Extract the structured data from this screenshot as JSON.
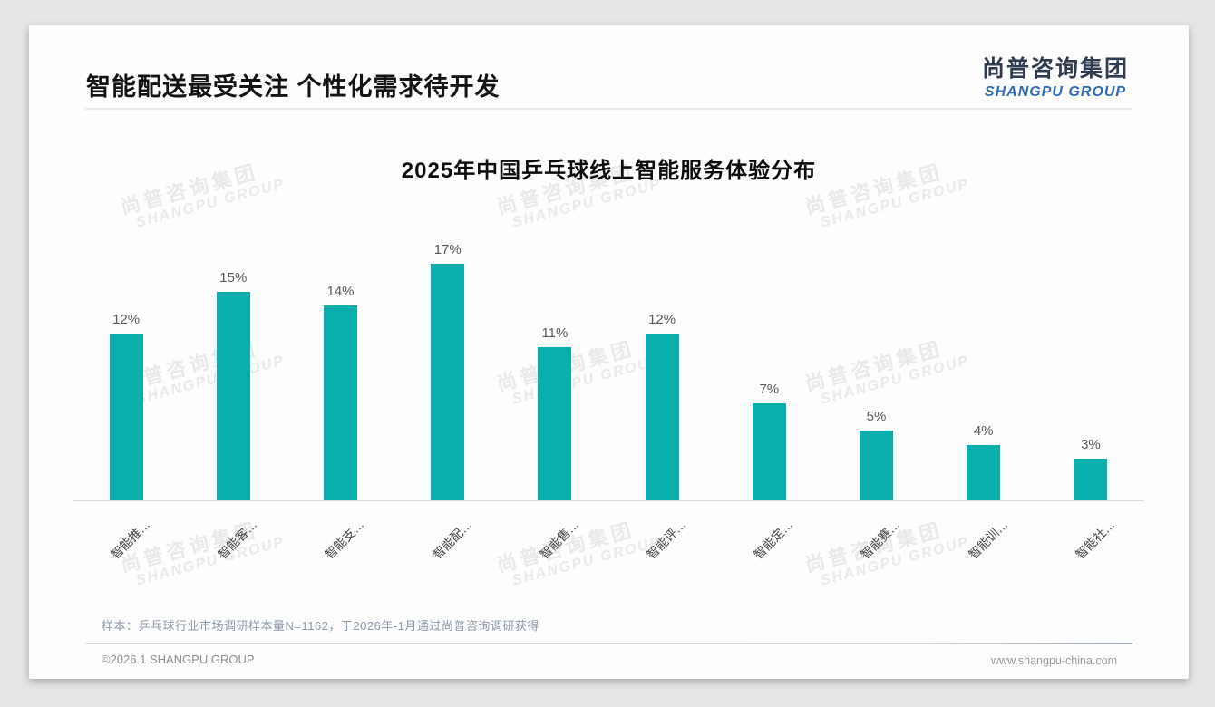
{
  "page": {
    "title": "智能配送最受关注 个性化需求待开发",
    "logo": {
      "cn": "尚普咨询集团",
      "en": "SHANGPU GROUP"
    },
    "watermark": {
      "line1": "尚普咨询集团",
      "line2": "SHANGPU GROUP"
    },
    "note": "样本：乒乓球行业市场调研样本量N=1162，于2026年-1月通过尚普咨询调研获得",
    "footer": {
      "left": "©2026.1 SHANGPU GROUP",
      "right": "www.shangpu-china.com"
    }
  },
  "chart_data": {
    "type": "bar",
    "title": "2025年中国乒乓球线上智能服务体验分布",
    "categories": [
      "智能推…",
      "智能客…",
      "智能支…",
      "智能配…",
      "智能售…",
      "智能评…",
      "智能定…",
      "智能赛…",
      "智能训…",
      "智能社…"
    ],
    "values": [
      12,
      15,
      14,
      17,
      11,
      12,
      7,
      5,
      4,
      3
    ],
    "data_labels": [
      "12%",
      "15%",
      "14%",
      "17%",
      "11%",
      "12%",
      "7%",
      "5%",
      "4%",
      "3%"
    ],
    "unit": "%",
    "bar_color": "#09b0ab",
    "ylim": [
      0,
      18
    ],
    "xlabel": "",
    "ylabel": "",
    "grid": false,
    "legend": "none",
    "label_rotation": -45
  }
}
